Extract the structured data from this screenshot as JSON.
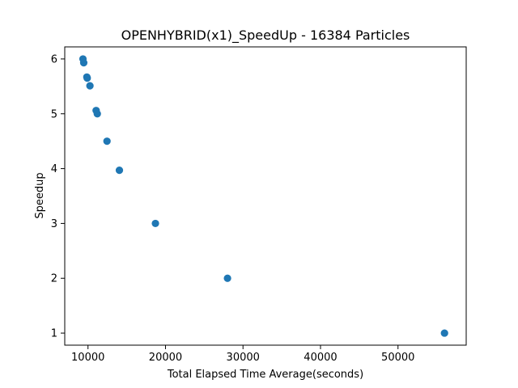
{
  "chart_data": {
    "type": "scatter",
    "title": "OPENHYBRID(x1)_SpeedUp - 16384 Particles",
    "xlabel": "Total Elapsed Time Average(seconds)",
    "ylabel": "Speedup",
    "xlim": [
      7000,
      58800
    ],
    "ylim": [
      0.78,
      6.22
    ],
    "xticks": [
      10000,
      20000,
      30000,
      40000,
      50000
    ],
    "xtick_labels": [
      "10000",
      "20000",
      "30000",
      "40000",
      "50000"
    ],
    "yticks": [
      1,
      2,
      3,
      4,
      5,
      6
    ],
    "ytick_labels": [
      "1",
      "2",
      "3",
      "4",
      "5",
      "6"
    ],
    "grid": false,
    "marker_color": "#1f77b4",
    "series": [
      {
        "x": [
          56000,
          28000,
          18700,
          14050,
          12450,
          11200,
          11050,
          10250,
          9900,
          9850,
          9450,
          9350
        ],
        "y": [
          1.0,
          2.0,
          3.0,
          3.97,
          4.5,
          5.0,
          5.06,
          5.51,
          5.65,
          5.67,
          5.93,
          6.0
        ]
      }
    ]
  }
}
